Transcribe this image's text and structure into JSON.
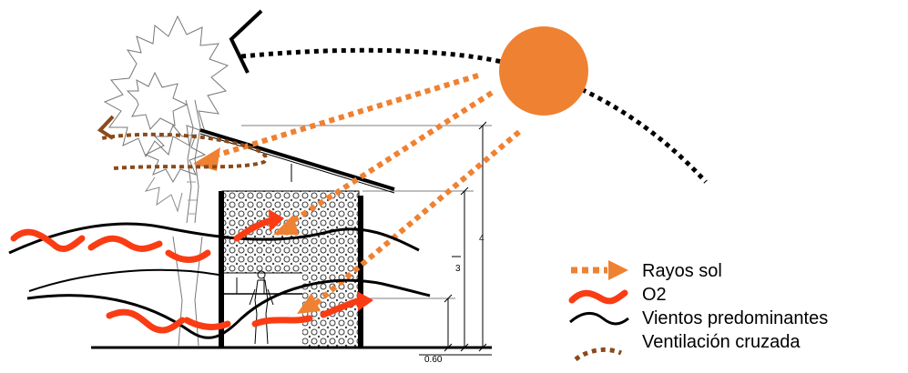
{
  "colors": {
    "sun": "#ef8132",
    "sun_rays": "#ef8132",
    "oxygen": "#fa3c14",
    "winds": "#000000",
    "cross_ventilation": "#8b4a1b"
  },
  "icons": [
    "tree-icon",
    "sun-icon",
    "person-icon"
  ],
  "dimensions": {
    "total_height": "4",
    "wall_height": "3",
    "sill_height": "0.60"
  },
  "legend": {
    "sun_rays": "Rayos sol",
    "oxygen": "O2",
    "winds": "Vientos predominantes",
    "cross_ventilation": "Ventilación cruzada"
  }
}
